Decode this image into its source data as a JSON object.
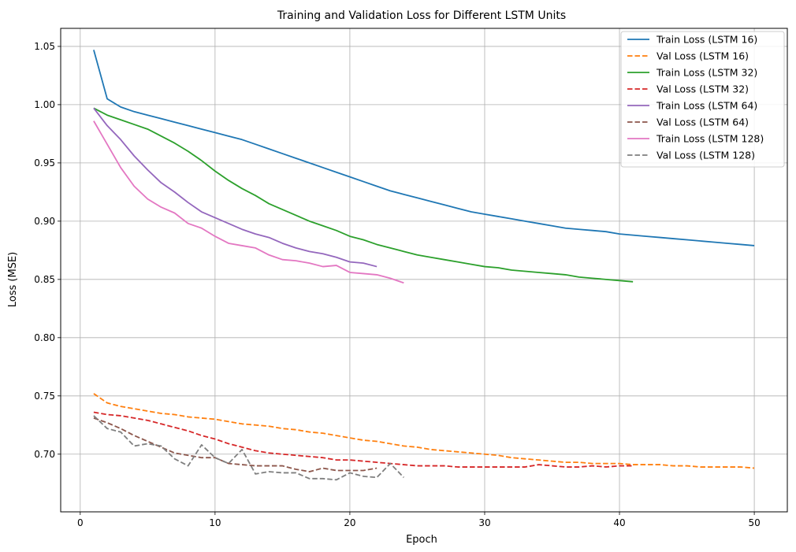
{
  "chart_data": {
    "type": "line",
    "title": "Training and Validation Loss for Different LSTM Units",
    "xlabel": "Epoch",
    "ylabel": "Loss (MSE)",
    "xlim": [
      -1.45,
      52.45
    ],
    "ylim": [
      0.6505,
      1.0655
    ],
    "x_ticks": [
      0,
      10,
      20,
      30,
      40,
      50
    ],
    "y_ticks": [
      0.7,
      0.75,
      0.8,
      0.85,
      0.9,
      0.95,
      1.0,
      1.05
    ],
    "y_tick_labels": [
      "0.70",
      "0.75",
      "0.80",
      "0.85",
      "0.90",
      "0.95",
      "1.00",
      "1.05"
    ],
    "grid": true,
    "legend_position": "top-right",
    "series": [
      {
        "name": "Train Loss (LSTM 16)",
        "color": "#1f77b4",
        "dashed": false,
        "values": [
          1.047,
          1.005,
          0.998,
          0.994,
          0.991,
          0.988,
          0.985,
          0.982,
          0.979,
          0.976,
          0.973,
          0.97,
          0.966,
          0.962,
          0.958,
          0.954,
          0.95,
          0.946,
          0.942,
          0.938,
          0.934,
          0.93,
          0.926,
          0.923,
          0.92,
          0.917,
          0.914,
          0.911,
          0.908,
          0.906,
          0.904,
          0.902,
          0.9,
          0.898,
          0.896,
          0.894,
          0.893,
          0.892,
          0.891,
          0.889,
          0.888,
          0.887,
          0.886,
          0.885,
          0.884,
          0.883,
          0.882,
          0.881,
          0.88,
          0.879
        ]
      },
      {
        "name": "Val Loss (LSTM 16)",
        "color": "#ff7f0e",
        "dashed": true,
        "values": [
          0.752,
          0.744,
          0.741,
          0.739,
          0.737,
          0.735,
          0.734,
          0.732,
          0.731,
          0.73,
          0.728,
          0.726,
          0.725,
          0.724,
          0.722,
          0.721,
          0.719,
          0.718,
          0.716,
          0.714,
          0.712,
          0.711,
          0.709,
          0.707,
          0.706,
          0.704,
          0.703,
          0.702,
          0.701,
          0.7,
          0.699,
          0.697,
          0.696,
          0.695,
          0.694,
          0.693,
          0.693,
          0.692,
          0.692,
          0.692,
          0.691,
          0.691,
          0.691,
          0.69,
          0.69,
          0.689,
          0.689,
          0.689,
          0.689,
          0.688
        ]
      },
      {
        "name": "Train Loss (LSTM 32)",
        "color": "#2ca02c",
        "dashed": false,
        "values": [
          0.997,
          0.991,
          0.987,
          0.983,
          0.979,
          0.973,
          0.967,
          0.96,
          0.952,
          0.943,
          0.935,
          0.928,
          0.922,
          0.915,
          0.91,
          0.905,
          0.9,
          0.896,
          0.892,
          0.887,
          0.884,
          0.88,
          0.877,
          0.874,
          0.871,
          0.869,
          0.867,
          0.865,
          0.863,
          0.861,
          0.86,
          0.858,
          0.857,
          0.856,
          0.855,
          0.854,
          0.852,
          0.851,
          0.85,
          0.849,
          0.848
        ]
      },
      {
        "name": "Val Loss (LSTM 32)",
        "color": "#d62728",
        "dashed": true,
        "values": [
          0.736,
          0.734,
          0.733,
          0.731,
          0.729,
          0.726,
          0.723,
          0.72,
          0.716,
          0.713,
          0.709,
          0.706,
          0.703,
          0.701,
          0.7,
          0.699,
          0.698,
          0.697,
          0.695,
          0.695,
          0.694,
          0.693,
          0.692,
          0.691,
          0.69,
          0.69,
          0.69,
          0.689,
          0.689,
          0.689,
          0.689,
          0.689,
          0.689,
          0.691,
          0.69,
          0.689,
          0.689,
          0.69,
          0.689,
          0.69,
          0.69
        ]
      },
      {
        "name": "Train Loss (LSTM 64)",
        "color": "#9467bd",
        "dashed": false,
        "values": [
          0.997,
          0.982,
          0.97,
          0.956,
          0.944,
          0.933,
          0.925,
          0.916,
          0.908,
          0.903,
          0.898,
          0.893,
          0.889,
          0.886,
          0.881,
          0.877,
          0.874,
          0.872,
          0.869,
          0.865,
          0.864,
          0.861
        ]
      },
      {
        "name": "Val Loss (LSTM 64)",
        "color": "#8c564b",
        "dashed": true,
        "values": [
          0.731,
          0.727,
          0.722,
          0.716,
          0.711,
          0.706,
          0.701,
          0.699,
          0.697,
          0.697,
          0.692,
          0.691,
          0.69,
          0.69,
          0.69,
          0.687,
          0.685,
          0.688,
          0.686,
          0.686,
          0.686,
          0.688
        ]
      },
      {
        "name": "Train Loss (LSTM 128)",
        "color": "#e377c2",
        "dashed": false,
        "values": [
          0.986,
          0.966,
          0.946,
          0.93,
          0.919,
          0.912,
          0.907,
          0.898,
          0.894,
          0.887,
          0.881,
          0.879,
          0.877,
          0.871,
          0.867,
          0.866,
          0.864,
          0.861,
          0.862,
          0.856,
          0.855,
          0.854,
          0.851,
          0.847
        ]
      },
      {
        "name": "Val Loss (LSTM 128)",
        "color": "#7f7f7f",
        "dashed": true,
        "values": [
          0.733,
          0.722,
          0.719,
          0.707,
          0.709,
          0.707,
          0.696,
          0.69,
          0.708,
          0.697,
          0.692,
          0.704,
          0.683,
          0.685,
          0.684,
          0.684,
          0.679,
          0.679,
          0.678,
          0.684,
          0.681,
          0.68,
          0.692,
          0.68
        ]
      }
    ]
  }
}
